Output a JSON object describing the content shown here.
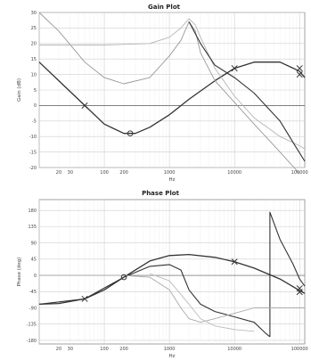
{
  "chart_data": [
    {
      "type": "line",
      "title": "Gain Plot",
      "xlabel": "Hz",
      "ylabel": "Gain (dB)",
      "xscale": "log",
      "xlim": [
        10,
        120000
      ],
      "ylim": [
        -20,
        30
      ],
      "x_ticks": [
        {
          "value": 20,
          "label": "20"
        },
        {
          "value": 30,
          "label": "30"
        },
        {
          "value": 100,
          "label": "100"
        },
        {
          "value": 200,
          "label": "200"
        },
        {
          "value": 1000,
          "label": "1000"
        },
        {
          "value": 10000,
          "label": "10000"
        },
        {
          "value": 100000,
          "label": "100000"
        }
      ],
      "y_ticks": [
        {
          "value": 30,
          "label": "30"
        },
        {
          "value": 25,
          "label": "25"
        },
        {
          "value": 20,
          "label": "20"
        },
        {
          "value": 15,
          "label": "15"
        },
        {
          "value": 10,
          "label": "10"
        },
        {
          "value": 5,
          "label": "5"
        },
        {
          "value": 0,
          "label": "0"
        },
        {
          "value": -5,
          "label": "-5"
        },
        {
          "value": -10,
          "label": "-10"
        },
        {
          "value": -15,
          "label": "-15"
        },
        {
          "value": -20,
          "label": "-20"
        }
      ],
      "grid": true,
      "series": [
        {
          "color": "#333333",
          "width": 1.3,
          "points": [
            [
              10,
              14
            ],
            [
              20,
              8
            ],
            [
              50,
              0
            ],
            [
              100,
              -6
            ],
            [
              200,
              -9
            ],
            [
              300,
              -9
            ],
            [
              500,
              -7
            ],
            [
              1000,
              -3
            ],
            [
              2000,
              2
            ],
            [
              5000,
              8
            ],
            [
              10000,
              12
            ],
            [
              20000,
              14
            ],
            [
              50000,
              14
            ],
            [
              80000,
              12
            ],
            [
              100000,
              11
            ],
            [
              120000,
              9
            ]
          ]
        },
        {
          "color": "#999999",
          "width": 0.9,
          "points": [
            [
              10,
              30
            ],
            [
              20,
              24
            ],
            [
              50,
              14
            ],
            [
              100,
              9
            ],
            [
              200,
              7
            ],
            [
              500,
              9
            ],
            [
              1000,
              16
            ],
            [
              1500,
              21
            ],
            [
              2000,
              27
            ],
            [
              2500,
              24
            ],
            [
              3000,
              17
            ],
            [
              5000,
              8
            ],
            [
              10000,
              1
            ],
            [
              20000,
              -6
            ],
            [
              50000,
              -15
            ],
            [
              100000,
              -22
            ]
          ]
        },
        {
          "color": "#b5b5b5",
          "width": 0.9,
          "points": [
            [
              10,
              19.5
            ],
            [
              100,
              19.5
            ],
            [
              500,
              20
            ],
            [
              1000,
              22
            ],
            [
              1500,
              25
            ],
            [
              2000,
              28
            ],
            [
              2500,
              26
            ],
            [
              3000,
              22
            ],
            [
              5000,
              12
            ],
            [
              10000,
              3
            ],
            [
              20000,
              -4
            ],
            [
              50000,
              -10
            ],
            [
              100000,
              -13
            ],
            [
              120000,
              -14
            ]
          ]
        },
        {
          "color": "#333333",
          "width": 1.1,
          "points": [
            [
              2000,
              27
            ],
            [
              3000,
              20
            ],
            [
              5000,
              13
            ],
            [
              10000,
              9
            ],
            [
              20000,
              4
            ],
            [
              50000,
              -5
            ],
            [
              80000,
              -12
            ],
            [
              120000,
              -18
            ]
          ]
        }
      ],
      "markers": [
        {
          "symbol": "x",
          "x": 50,
          "y": 0
        },
        {
          "symbol": "o",
          "x": 250,
          "y": -9
        },
        {
          "symbol": "x",
          "x": 10000,
          "y": 12
        },
        {
          "symbol": "x",
          "x": 100000,
          "y": 12
        },
        {
          "symbol": "x",
          "x": 100000,
          "y": 10
        }
      ]
    },
    {
      "type": "line",
      "title": "Phase Plot",
      "xlabel": "Hz",
      "ylabel": "Phase (deg)",
      "xscale": "log",
      "xlim": [
        10,
        120000
      ],
      "ylim": [
        -190,
        210
      ],
      "x_ticks": [
        {
          "value": 20,
          "label": "20"
        },
        {
          "value": 30,
          "label": "30"
        },
        {
          "value": 100,
          "label": "100"
        },
        {
          "value": 200,
          "label": "200"
        },
        {
          "value": 1000,
          "label": "1000"
        },
        {
          "value": 10000,
          "label": "10000"
        },
        {
          "value": 100000,
          "label": "100000"
        }
      ],
      "y_ticks": [
        {
          "value": 180,
          "label": "180"
        },
        {
          "value": 135,
          "label": "135"
        },
        {
          "value": 90,
          "label": "90"
        },
        {
          "value": 45,
          "label": "45"
        },
        {
          "value": 0,
          "label": "0"
        },
        {
          "value": -45,
          "label": "-45"
        },
        {
          "value": -90,
          "label": "-90"
        },
        {
          "value": -135,
          "label": "-135"
        },
        {
          "value": -180,
          "label": "-180"
        }
      ],
      "grid": true,
      "series": [
        {
          "color": "#333333",
          "width": 1.3,
          "points": [
            [
              10,
              -80
            ],
            [
              20,
              -78
            ],
            [
              50,
              -65
            ],
            [
              100,
              -40
            ],
            [
              200,
              -5
            ],
            [
              500,
              40
            ],
            [
              1000,
              55
            ],
            [
              2000,
              58
            ],
            [
              5000,
              50
            ],
            [
              10000,
              38
            ],
            [
              20000,
              20
            ],
            [
              50000,
              -10
            ],
            [
              100000,
              -42
            ],
            [
              120000,
              -50
            ]
          ]
        },
        {
          "color": "#333333",
          "width": 1.1,
          "points": [
            [
              10,
              -80
            ],
            [
              50,
              -65
            ],
            [
              200,
              -5
            ],
            [
              500,
              25
            ],
            [
              1000,
              30
            ],
            [
              1500,
              15
            ],
            [
              2000,
              -40
            ],
            [
              3000,
              -80
            ],
            [
              5000,
              -100
            ],
            [
              10000,
              -115
            ],
            [
              20000,
              -130
            ],
            [
              30000,
              -160
            ],
            [
              35000,
              -170
            ]
          ]
        },
        {
          "color": "#333333",
          "width": 1.1,
          "points": [
            [
              35000,
              -170
            ],
            [
              35000,
              175
            ],
            [
              50000,
              100
            ],
            [
              80000,
              30
            ],
            [
              100000,
              -10
            ],
            [
              120000,
              -30
            ]
          ]
        },
        {
          "color": "#aaaaaa",
          "width": 0.9,
          "points": [
            [
              10,
              0
            ],
            [
              200,
              0
            ],
            [
              500,
              -5
            ],
            [
              1000,
              -40
            ],
            [
              1500,
              -90
            ],
            [
              2000,
              -120
            ],
            [
              3000,
              -130
            ],
            [
              5000,
              -120
            ],
            [
              10000,
              -105
            ],
            [
              20000,
              -90
            ],
            [
              50000,
              -90
            ],
            [
              120000,
              -90
            ]
          ]
        },
        {
          "color": "#bbbbbb",
          "width": 0.9,
          "points": [
            [
              500,
              5
            ],
            [
              1000,
              -15
            ],
            [
              2000,
              -80
            ],
            [
              3000,
              -120
            ],
            [
              5000,
              -140
            ],
            [
              10000,
              -150
            ],
            [
              20000,
              -155
            ]
          ]
        }
      ],
      "markers": [
        {
          "symbol": "x",
          "x": 50,
          "y": -65
        },
        {
          "symbol": "o",
          "x": 200,
          "y": -5
        },
        {
          "symbol": "x",
          "x": 10000,
          "y": 38
        },
        {
          "symbol": "x",
          "x": 100000,
          "y": -36
        },
        {
          "symbol": "x",
          "x": 100000,
          "y": -46
        }
      ]
    }
  ]
}
